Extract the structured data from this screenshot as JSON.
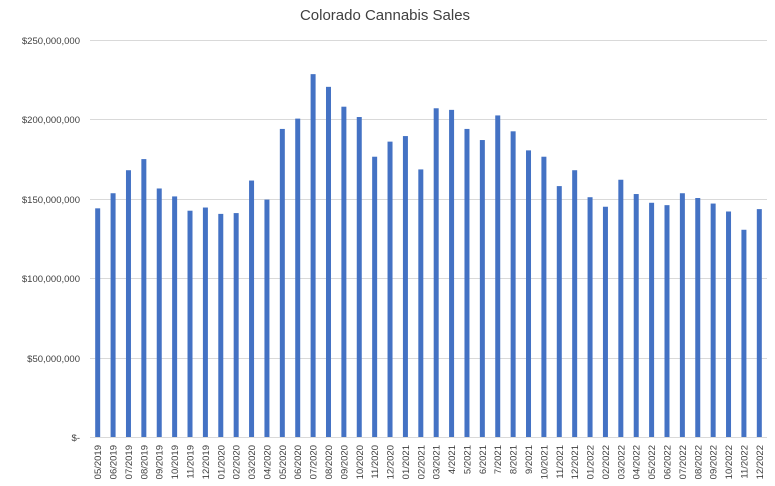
{
  "chart_data": {
    "type": "bar",
    "title": "Colorado Cannabis Sales",
    "xlabel": "",
    "ylabel": "",
    "ylim": [
      0,
      250000000
    ],
    "y_ticks": [
      {
        "value": 0,
        "label": "$-"
      },
      {
        "value": 50000000,
        "label": "$50,000,000"
      },
      {
        "value": 100000000,
        "label": "$100,000,000"
      },
      {
        "value": 150000000,
        "label": "$150,000,000"
      },
      {
        "value": 200000000,
        "label": "$200,000,000"
      },
      {
        "value": 250000000,
        "label": "$250,000,000"
      }
    ],
    "grid": true,
    "legend": "none",
    "bar_color": "#4472C4",
    "categories": [
      "05/2019",
      "06/2019",
      "07/2019",
      "08/2019",
      "09/2019",
      "10/2019",
      "11/2019",
      "12/2019",
      "01/2020",
      "02/2020",
      "03/2020",
      "04/2020",
      "05/2020",
      "06/2020",
      "07/2020",
      "08/2020",
      "09/2020",
      "10/2020",
      "11/2020",
      "12/2020",
      "01/2021",
      "02/2021",
      "03/2021",
      "4/2021",
      "5/2021",
      "6/2021",
      "7/2021",
      "8/2021",
      "9/2021",
      "10/2021",
      "11/2021",
      "12/2021",
      "01/2022",
      "02/2022",
      "03/2022",
      "04/2022",
      "05/2022",
      "06/2022",
      "07/2022",
      "08/2022",
      "09/2022",
      "10/2022",
      "11/2022",
      "12/2022"
    ],
    "values": [
      144000000,
      153500000,
      168000000,
      175000000,
      156500000,
      151500000,
      142500000,
      144500000,
      140500000,
      141000000,
      161500000,
      149500000,
      194000000,
      200500000,
      228500000,
      220500000,
      208000000,
      201500000,
      176500000,
      186000000,
      189500000,
      168500000,
      207000000,
      206000000,
      194000000,
      187000000,
      202500000,
      192500000,
      180500000,
      176500000,
      158000000,
      168000000,
      151000000,
      145000000,
      162000000,
      153000000,
      147500000,
      146000000,
      153500000,
      150500000,
      147000000,
      142000000,
      130500000,
      143500000
    ]
  }
}
